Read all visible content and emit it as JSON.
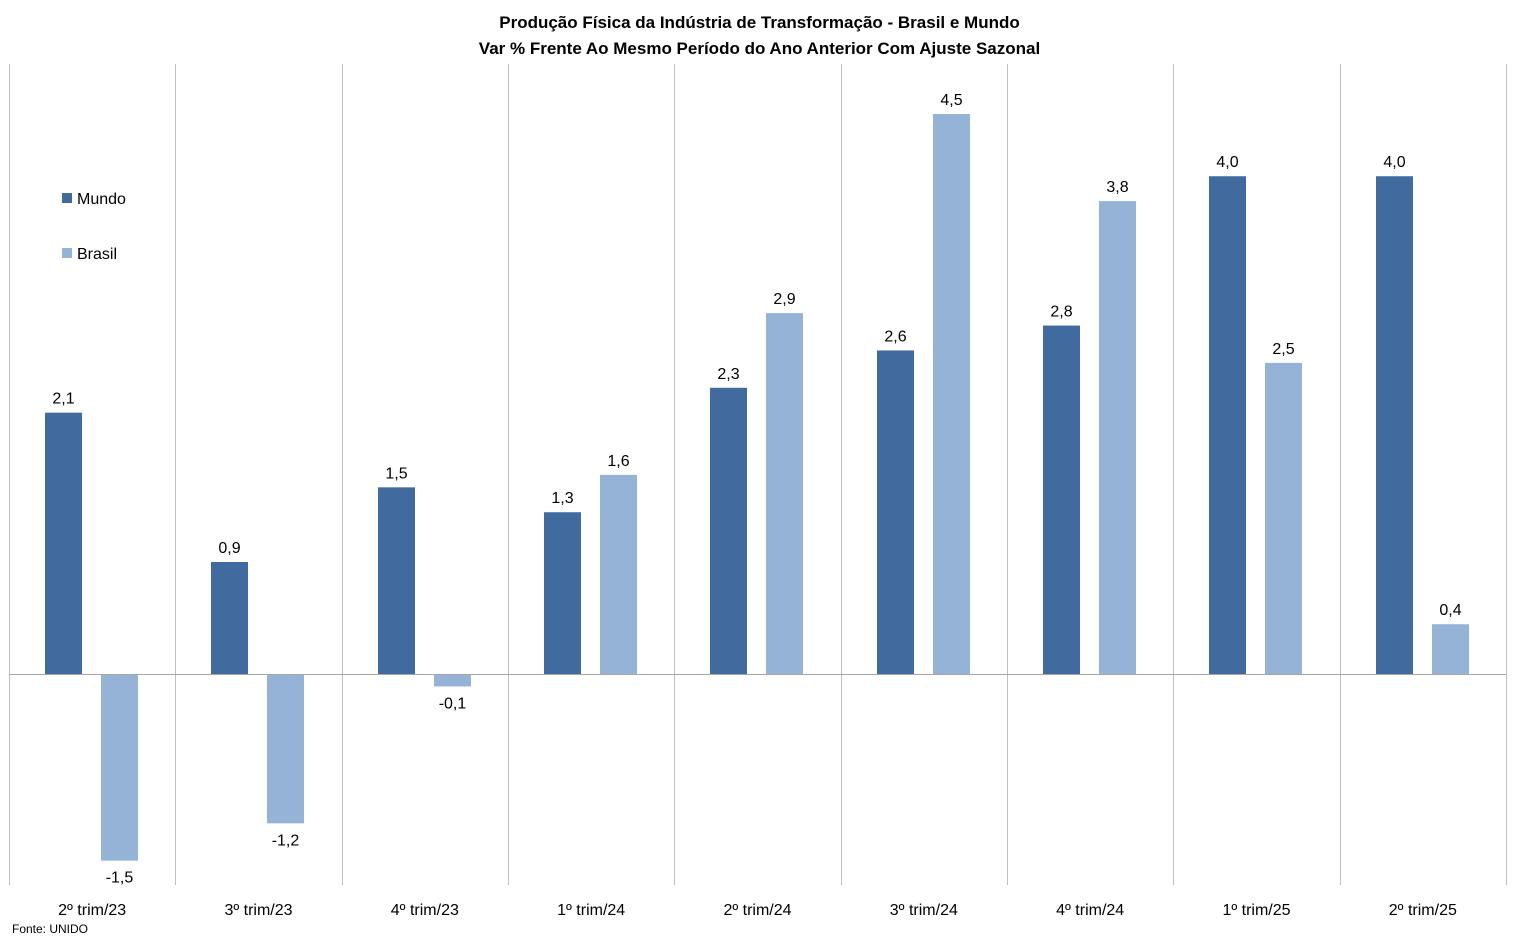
{
  "chart_data": {
    "type": "bar",
    "title": "Produção  Física da Indústria de Transformação  - Brasil e Mundo",
    "subtitle": "Var % Frente Ao Mesmo Período do Ano Anterior Com Ajuste Sazonal",
    "categories": [
      "2º trim/23",
      "3º trim/23",
      "4º trim/23",
      "1º trim/24",
      "2º trim/24",
      "3º trim/24",
      "4º trim/24",
      "1º trim/25",
      "2º trim/25"
    ],
    "series": [
      {
        "name": "Mundo",
        "color": "#416A9E",
        "values": [
          2.1,
          0.9,
          1.5,
          1.3,
          2.3,
          2.6,
          2.8,
          4.0,
          4.0
        ]
      },
      {
        "name": "Brasil",
        "color": "#95B3D7",
        "values": [
          -1.5,
          -1.2,
          -0.1,
          1.6,
          2.9,
          4.5,
          3.8,
          2.5,
          0.4
        ]
      }
    ],
    "data_labels": [
      [
        "2,1",
        "0,9",
        "1,5",
        "1,3",
        "2,3",
        "2,6",
        "2,8",
        "4,0",
        "4,0"
      ],
      [
        "-1,5",
        "-1,2",
        "-0,1",
        "1,6",
        "2,9",
        "4,5",
        "3,8",
        "2,5",
        "0,4"
      ]
    ],
    "xlabel": "",
    "ylabel": "",
    "ylim": [
      -1.7,
      5.0
    ],
    "grid": "vertical",
    "legend": "left"
  },
  "source": "Fonte: UNIDO"
}
